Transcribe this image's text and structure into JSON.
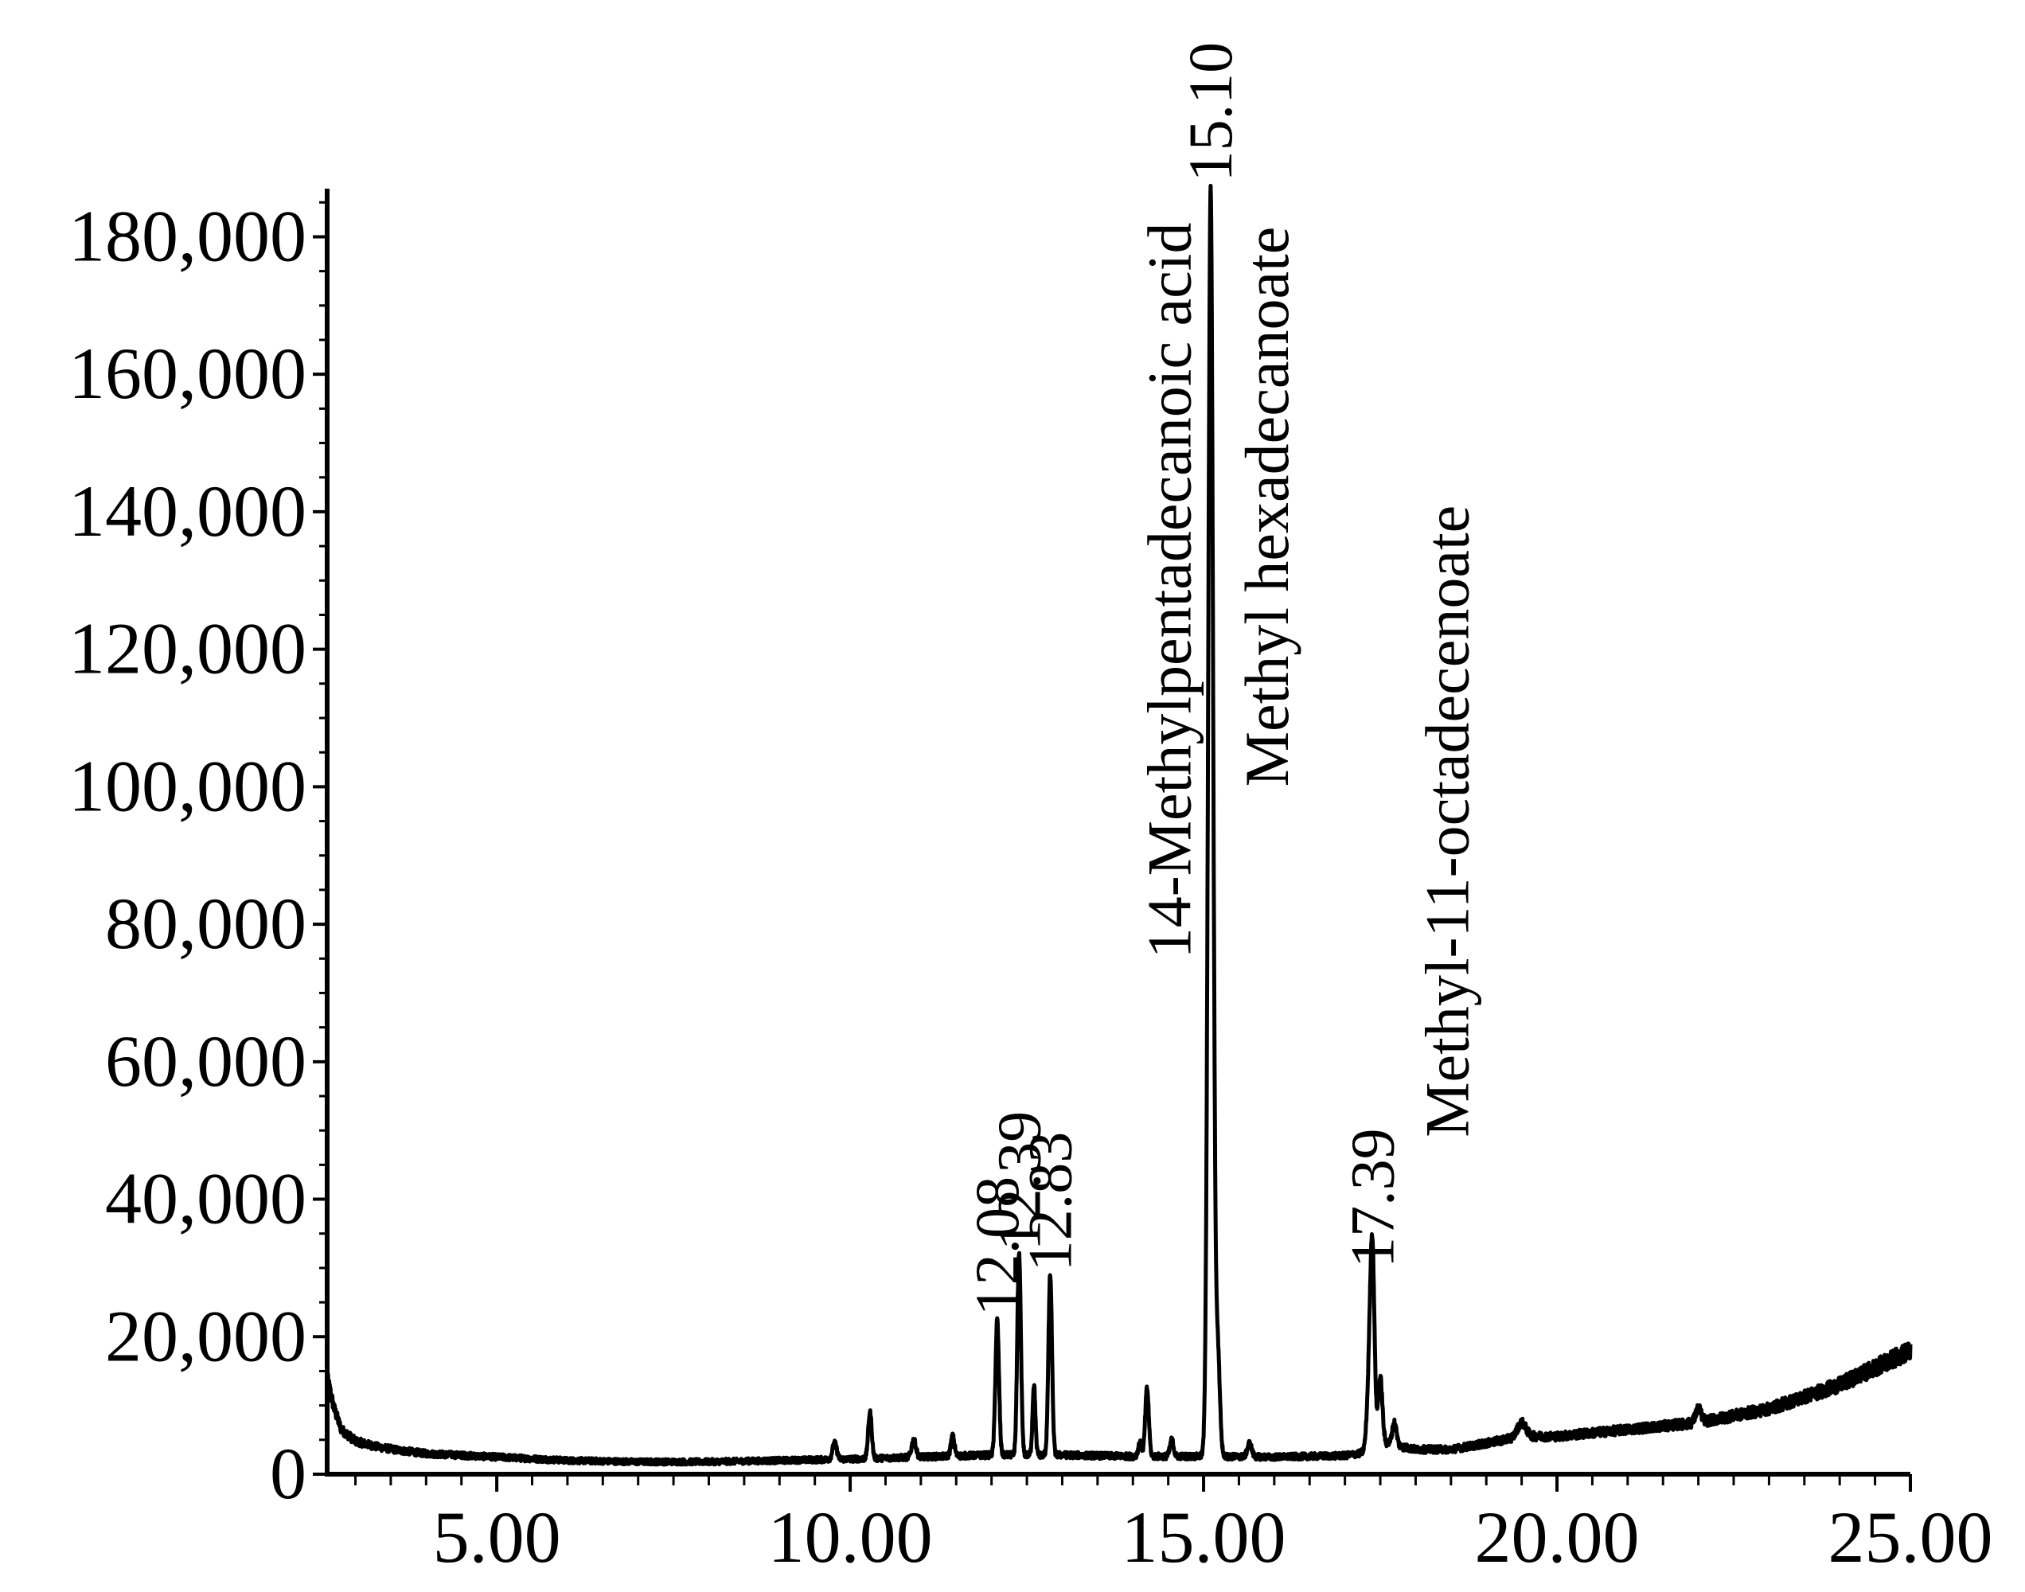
{
  "chart_data": {
    "type": "line",
    "title": "",
    "xlabel": "",
    "ylabel": "",
    "xlim": [
      2.6,
      25.0
    ],
    "ylim": [
      0,
      187000
    ],
    "grid": false,
    "x_ticks": [
      5,
      10,
      15,
      20,
      25
    ],
    "x_tick_labels": [
      "5.00",
      "10.00",
      "15.00",
      "20.00",
      "25.00"
    ],
    "y_ticks": [
      0,
      20000,
      40000,
      60000,
      80000,
      100000,
      120000,
      140000,
      160000,
      180000
    ],
    "y_tick_labels": [
      "0",
      "20,000",
      "40,000",
      "60,000",
      "80,000",
      "100,000",
      "120,000",
      "140,000",
      "160,000",
      "180,000"
    ],
    "colors": {
      "line": "#000000",
      "axis": "#000000"
    },
    "baseline": [
      [
        2.6,
        14000
      ],
      [
        2.7,
        9500
      ],
      [
        2.8,
        6500
      ],
      [
        3.0,
        4800
      ],
      [
        3.3,
        4000
      ],
      [
        3.6,
        3500
      ],
      [
        4.0,
        3000
      ],
      [
        5.0,
        2500
      ],
      [
        6.0,
        2000
      ],
      [
        7.0,
        1800
      ],
      [
        8.0,
        1800
      ],
      [
        9.0,
        2000
      ],
      [
        10.0,
        2200
      ],
      [
        11.0,
        2500
      ],
      [
        12.0,
        2800
      ],
      [
        13.0,
        2800
      ],
      [
        14.0,
        2600
      ],
      [
        15.0,
        2600
      ],
      [
        16.0,
        2500
      ],
      [
        17.0,
        2700
      ],
      [
        17.2,
        3000
      ],
      [
        17.6,
        4500
      ],
      [
        17.8,
        4000
      ],
      [
        18.0,
        3600
      ],
      [
        18.5,
        3600
      ],
      [
        19.0,
        4500
      ],
      [
        19.5,
        5500
      ],
      [
        20.0,
        5500
      ],
      [
        21.0,
        6500
      ],
      [
        22.0,
        7500
      ],
      [
        23.0,
        9500
      ],
      [
        24.0,
        13000
      ],
      [
        25.0,
        18000
      ]
    ],
    "peaks": [
      {
        "x": 9.78,
        "y": 4500,
        "w": 0.03
      },
      {
        "x": 10.28,
        "y": 9000,
        "w": 0.025
      },
      {
        "x": 10.9,
        "y": 5000,
        "w": 0.03
      },
      {
        "x": 11.45,
        "y": 5500,
        "w": 0.025
      },
      {
        "x": 12.08,
        "y": 22500,
        "w": 0.025
      },
      {
        "x": 12.39,
        "y": 32000,
        "w": 0.025
      },
      {
        "x": 12.6,
        "y": 13000,
        "w": 0.02
      },
      {
        "x": 12.83,
        "y": 29000,
        "w": 0.025
      },
      {
        "x": 14.1,
        "y": 4500,
        "w": 0.025
      },
      {
        "x": 14.2,
        "y": 12500,
        "w": 0.025
      },
      {
        "x": 14.55,
        "y": 5000,
        "w": 0.025
      },
      {
        "x": 15.1,
        "y": 187000,
        "w": 0.035
      },
      {
        "x": 15.2,
        "y": 18000,
        "w": 0.03
      },
      {
        "x": 15.65,
        "y": 4500,
        "w": 0.03
      },
      {
        "x": 17.35,
        "y": 14000,
        "w": 0.035
      },
      {
        "x": 17.39,
        "y": 29000,
        "w": 0.03
      },
      {
        "x": 17.5,
        "y": 14000,
        "w": 0.03
      },
      {
        "x": 17.7,
        "y": 7500,
        "w": 0.03
      },
      {
        "x": 19.5,
        "y": 7500,
        "w": 0.06
      },
      {
        "x": 22.0,
        "y": 9500,
        "w": 0.04
      }
    ],
    "annotations": [
      {
        "id": "rt-12-08",
        "text": "12.08",
        "x": 12.08,
        "y": 23000,
        "rotate": -90
      },
      {
        "id": "rt-12-39",
        "text": "12.39",
        "x": 12.39,
        "y": 32500,
        "rotate": -90
      },
      {
        "id": "rt-12-83",
        "text": "12.83",
        "x": 12.83,
        "y": 29500,
        "rotate": -90
      },
      {
        "id": "rt-15-10",
        "text": "15.10",
        "x": 15.1,
        "y": 188000,
        "rotate": -90
      },
      {
        "id": "rt-17-39",
        "text": "17.39",
        "x": 17.39,
        "y": 30000,
        "rotate": -90
      },
      {
        "id": "name-14-methylpentadecanoic-acid",
        "text": "14-Methylpentadecanoic acid",
        "x": 14.52,
        "y": 75000,
        "rotate": -90
      },
      {
        "id": "name-methyl-hexadecanoate",
        "text": "Methyl hexadecanoate",
        "x": 15.9,
        "y": 100000,
        "rotate": -90
      },
      {
        "id": "name-methyl-11-octadecenoate",
        "text": "Methyl-11-octadecenoate",
        "x": 18.45,
        "y": 49000,
        "rotate": -90
      }
    ]
  }
}
